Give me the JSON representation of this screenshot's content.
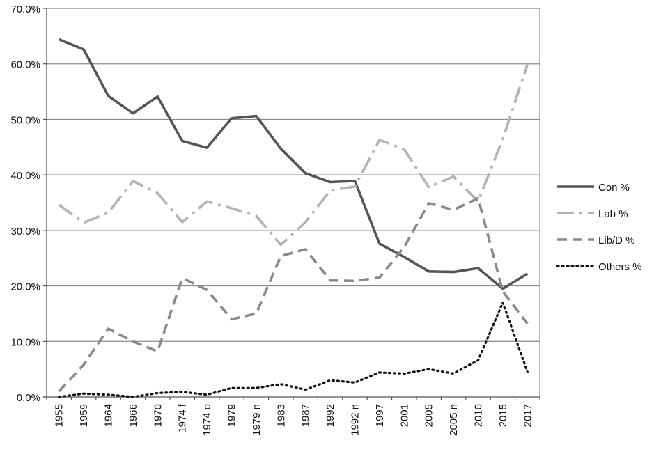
{
  "chart_data": {
    "type": "line",
    "categories": [
      "1955",
      "1959",
      "1964",
      "1966",
      "1970",
      "1974 f",
      "1974 o",
      "1979",
      "1979 n",
      "1983",
      "1987",
      "1992",
      "1992 n",
      "1997",
      "2001",
      "2005",
      "2005 n",
      "2010",
      "2015",
      "2017"
    ],
    "ylim": [
      0,
      70
    ],
    "y_ticks": [
      0,
      10,
      20,
      30,
      40,
      50,
      60,
      70
    ],
    "y_tick_labels": [
      "0.0%",
      "10.0%",
      "20.0%",
      "30.0%",
      "40.0%",
      "50.0%",
      "60.0%",
      "70.0%"
    ],
    "grid": "horizontal",
    "legend_position": "right",
    "series": [
      {
        "name": "Con %",
        "color": "#555555",
        "style": "solid",
        "values": [
          64.4,
          62.6,
          54.2,
          51.1,
          54.1,
          46.1,
          44.9,
          50.2,
          50.6,
          44.7,
          40.3,
          38.7,
          38.9,
          27.6,
          25.2,
          22.6,
          22.5,
          23.2,
          19.5,
          22.2
        ]
      },
      {
        "name": "Lab %",
        "color": "#b3b3b3",
        "style": "dashdot",
        "values": [
          34.6,
          31.4,
          33.2,
          38.9,
          36.7,
          31.5,
          35.2,
          34.0,
          32.6,
          27.4,
          31.5,
          37.2,
          37.9,
          46.3,
          44.6,
          37.8,
          39.7,
          35.2,
          46.5,
          59.9
        ]
      },
      {
        "name": "Lib/D %",
        "color": "#8a8a8a",
        "style": "dashed",
        "values": [
          1.0,
          5.8,
          12.3,
          10.0,
          8.2,
          21.4,
          19.3,
          14.0,
          15.0,
          25.4,
          26.6,
          21.0,
          20.9,
          21.5,
          27.0,
          34.9,
          33.7,
          35.8,
          19.0,
          13.2
        ]
      },
      {
        "name": "Others %",
        "color": "#111111",
        "style": "dotted",
        "values": [
          0.0,
          0.6,
          0.4,
          0.0,
          0.7,
          0.9,
          0.4,
          1.6,
          1.6,
          2.3,
          1.3,
          3.0,
          2.6,
          4.4,
          4.2,
          5.0,
          4.2,
          6.6,
          17.0,
          4.5
        ]
      }
    ]
  }
}
